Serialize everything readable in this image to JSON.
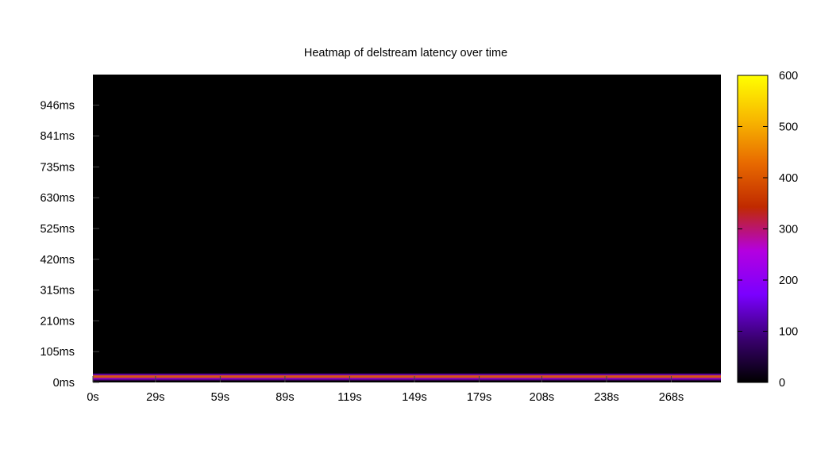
{
  "chart_data": {
    "type": "heatmap",
    "title": "Heatmap of delstream latency over time",
    "xlabel": "",
    "ylabel": "",
    "x_ticks": [
      "0s",
      "29s",
      "59s",
      "89s",
      "119s",
      "149s",
      "179s",
      "208s",
      "238s",
      "268s"
    ],
    "x_tick_values": [
      0,
      29,
      59,
      89,
      119,
      149,
      179,
      208,
      238,
      268
    ],
    "xlim": [
      0,
      291
    ],
    "y_ticks": [
      "0ms",
      "105ms",
      "210ms",
      "315ms",
      "420ms",
      "525ms",
      "630ms",
      "735ms",
      "841ms",
      "946ms"
    ],
    "y_tick_values": [
      0,
      105,
      210,
      315,
      420,
      525,
      630,
      735,
      841,
      946
    ],
    "ylim": [
      0,
      1050
    ],
    "colorbar": {
      "ticks": [
        "0",
        "100",
        "200",
        "300",
        "400",
        "500",
        "600"
      ],
      "tick_values": [
        0,
        100,
        200,
        300,
        400,
        500,
        600
      ],
      "range": [
        0,
        600
      ],
      "colormap": [
        "#000000",
        "#3a0070",
        "#7a00ff",
        "#b400e0",
        "#c02a00",
        "#e86a00",
        "#f8b800",
        "#ffff00"
      ]
    },
    "background_color": "#000000",
    "latency_band": {
      "y_range_ms": [
        6,
        34
      ],
      "peak_latency_ms": 20,
      "peak_count": 300,
      "x_range_s": [
        0,
        291
      ]
    },
    "grid": false,
    "legend": "colorbar-right"
  }
}
